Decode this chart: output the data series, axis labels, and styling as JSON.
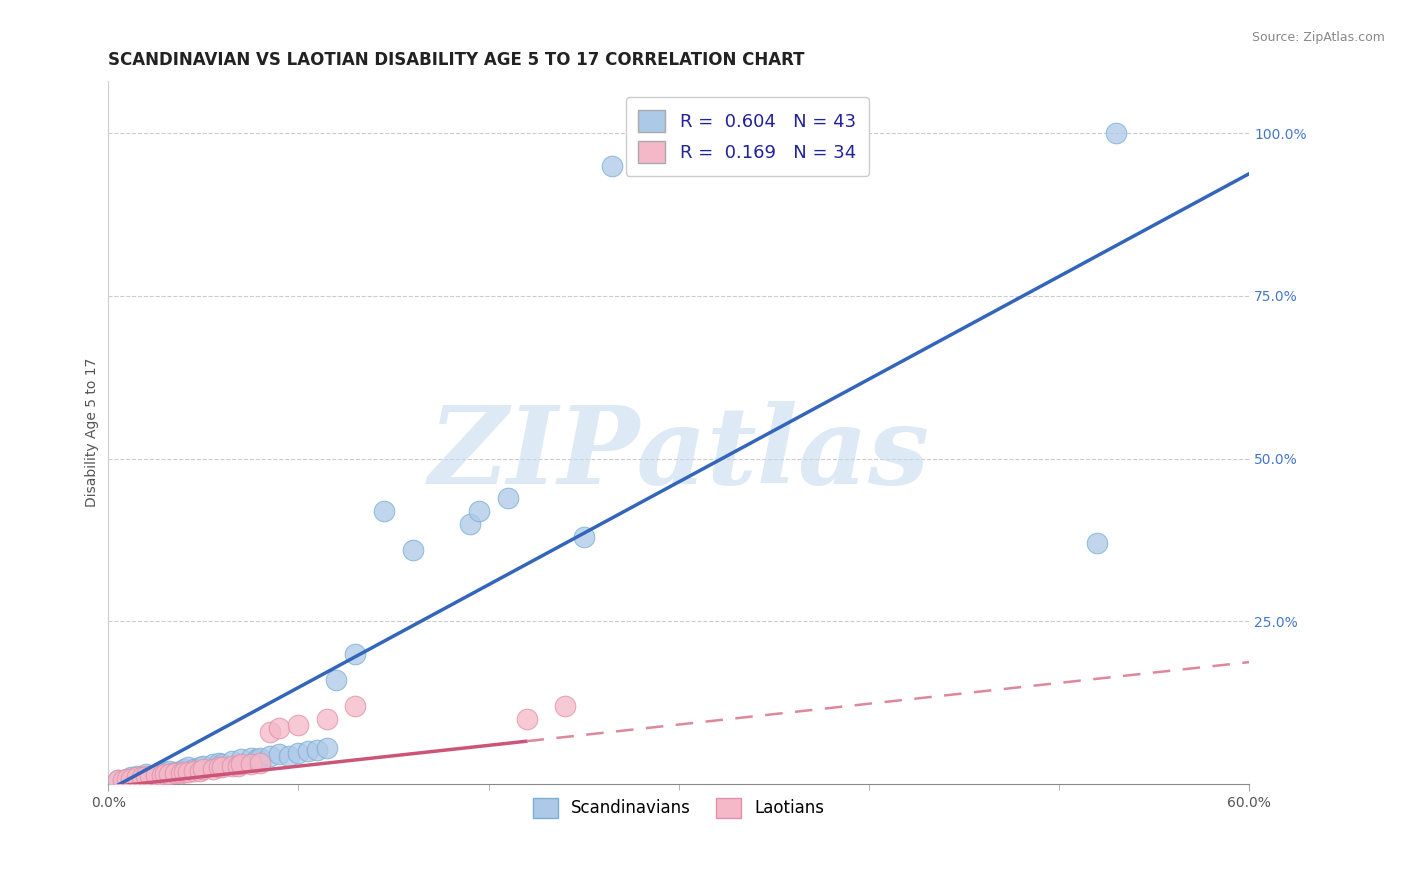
{
  "title": "SCANDINAVIAN VS LAOTIAN DISABILITY AGE 5 TO 17 CORRELATION CHART",
  "source_text": "Source: ZipAtlas.com",
  "ylabel": "Disability Age 5 to 17",
  "xlim": [
    0.0,
    0.6
  ],
  "ylim": [
    0.0,
    1.08
  ],
  "legend_entries": [
    {
      "label": "R =  0.604   N = 43",
      "color": "#adc9e8"
    },
    {
      "label": "R =  0.169   N = 34",
      "color": "#f4a8b8"
    }
  ],
  "watermark": "ZIPatlas",
  "watermark_color_r": 0.78,
  "watermark_color_g": 0.86,
  "watermark_color_b": 0.93,
  "scandinavian_color": "#adc9e8",
  "scandinavian_edge": "#7aafd4",
  "laotian_color": "#f4b8c8",
  "laotian_edge": "#e090a8",
  "regression_blue_color": "#3366bb",
  "regression_pink_color": "#cc5577",
  "regression_pink_dash_color": "#dd8899",
  "blue_slope": 1.58,
  "blue_intercept": -0.01,
  "pink_slope": 0.32,
  "pink_intercept": -0.005,
  "scandinavian_points": [
    [
      0.005,
      0.005
    ],
    [
      0.01,
      0.008
    ],
    [
      0.012,
      0.01
    ],
    [
      0.015,
      0.012
    ],
    [
      0.018,
      0.01
    ],
    [
      0.02,
      0.015
    ],
    [
      0.025,
      0.012
    ],
    [
      0.028,
      0.015
    ],
    [
      0.03,
      0.018
    ],
    [
      0.032,
      0.02
    ],
    [
      0.035,
      0.018
    ],
    [
      0.038,
      0.02
    ],
    [
      0.04,
      0.022
    ],
    [
      0.042,
      0.025
    ],
    [
      0.045,
      0.022
    ],
    [
      0.048,
      0.025
    ],
    [
      0.05,
      0.028
    ],
    [
      0.055,
      0.03
    ],
    [
      0.058,
      0.032
    ],
    [
      0.06,
      0.03
    ],
    [
      0.065,
      0.035
    ],
    [
      0.07,
      0.038
    ],
    [
      0.075,
      0.04
    ],
    [
      0.078,
      0.038
    ],
    [
      0.08,
      0.04
    ],
    [
      0.085,
      0.042
    ],
    [
      0.09,
      0.045
    ],
    [
      0.095,
      0.042
    ],
    [
      0.1,
      0.048
    ],
    [
      0.105,
      0.05
    ],
    [
      0.11,
      0.052
    ],
    [
      0.115,
      0.055
    ],
    [
      0.12,
      0.16
    ],
    [
      0.13,
      0.2
    ],
    [
      0.145,
      0.42
    ],
    [
      0.16,
      0.36
    ],
    [
      0.19,
      0.4
    ],
    [
      0.195,
      0.42
    ],
    [
      0.21,
      0.44
    ],
    [
      0.25,
      0.38
    ],
    [
      0.52,
      0.37
    ],
    [
      0.265,
      0.95
    ],
    [
      0.53,
      1.0
    ]
  ],
  "laotian_points": [
    [
      0.005,
      0.005
    ],
    [
      0.008,
      0.006
    ],
    [
      0.01,
      0.008
    ],
    [
      0.012,
      0.008
    ],
    [
      0.015,
      0.01
    ],
    [
      0.018,
      0.01
    ],
    [
      0.02,
      0.012
    ],
    [
      0.022,
      0.012
    ],
    [
      0.025,
      0.014
    ],
    [
      0.028,
      0.014
    ],
    [
      0.03,
      0.015
    ],
    [
      0.032,
      0.015
    ],
    [
      0.035,
      0.016
    ],
    [
      0.038,
      0.016
    ],
    [
      0.04,
      0.018
    ],
    [
      0.042,
      0.018
    ],
    [
      0.045,
      0.02
    ],
    [
      0.048,
      0.02
    ],
    [
      0.05,
      0.022
    ],
    [
      0.055,
      0.022
    ],
    [
      0.058,
      0.025
    ],
    [
      0.06,
      0.025
    ],
    [
      0.065,
      0.028
    ],
    [
      0.068,
      0.028
    ],
    [
      0.07,
      0.03
    ],
    [
      0.075,
      0.03
    ],
    [
      0.08,
      0.032
    ],
    [
      0.085,
      0.08
    ],
    [
      0.09,
      0.085
    ],
    [
      0.1,
      0.09
    ],
    [
      0.115,
      0.1
    ],
    [
      0.13,
      0.12
    ],
    [
      0.22,
      0.1
    ],
    [
      0.24,
      0.12
    ]
  ]
}
